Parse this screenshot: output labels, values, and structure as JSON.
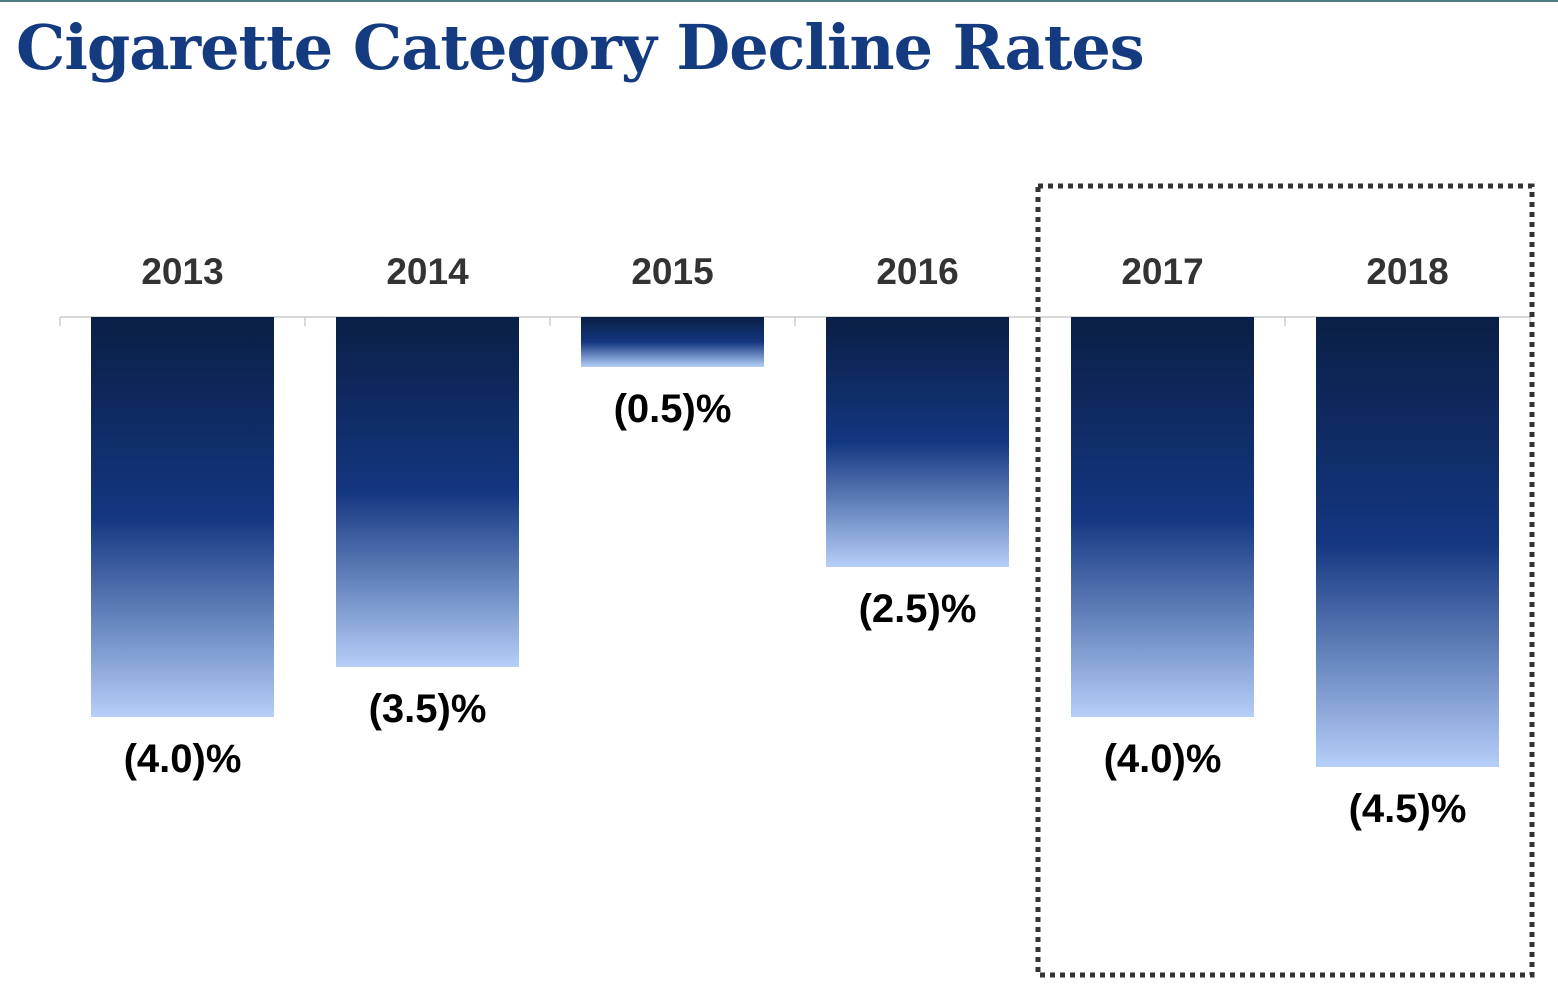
{
  "title": "Cigarette Category Decline Rates",
  "colors": {
    "title": "#143b80",
    "bar_top": "#0a1f45",
    "bar_mid": "#133680",
    "bar_bottom": "#b5cff8",
    "axis": "#cccccc",
    "highlight_box": "#333333"
  },
  "chart_data": {
    "type": "bar",
    "orientation": "vertical",
    "categories": [
      "2013",
      "2014",
      "2015",
      "2016",
      "2017",
      "2018"
    ],
    "values": [
      -4.0,
      -3.5,
      -0.5,
      -2.5,
      -4.0,
      -4.5
    ],
    "data_labels": [
      "(4.0)%",
      "(3.5)%",
      "(0.5)%",
      "(2.5)%",
      "(4.0)%",
      "(4.5)%"
    ],
    "category_label_position": "top",
    "ylim": [
      -4.5,
      0
    ],
    "grid": false,
    "legend": "none",
    "highlighted_categories": [
      "2017",
      "2018"
    ]
  }
}
